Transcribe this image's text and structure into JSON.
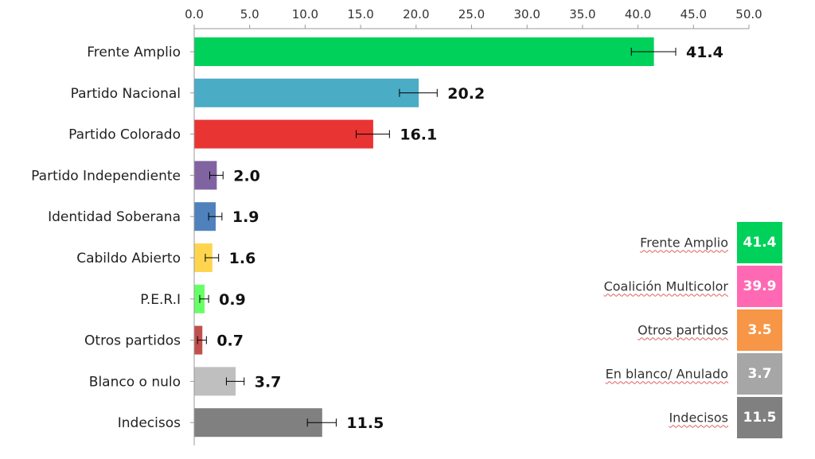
{
  "chart_data": {
    "type": "bar",
    "orientation": "horizontal",
    "xlim": [
      0,
      50
    ],
    "x_ticks": [
      "0.0",
      "5.0",
      "10.0",
      "15.0",
      "20.0",
      "25.0",
      "30.0",
      "35.0",
      "40.0",
      "45.0",
      "50.0"
    ],
    "categories": [
      "Frente Amplio",
      "Partido Nacional",
      "Partido Colorado",
      "Partido Independiente",
      "Identidad Soberana",
      "Cabildo Abierto",
      "P.E.R.I",
      "Otros partidos",
      "Blanco o nulo",
      "Indecisos"
    ],
    "values": [
      41.4,
      20.2,
      16.1,
      2.0,
      1.9,
      1.6,
      0.9,
      0.7,
      3.7,
      11.5
    ],
    "value_labels": [
      "41.4",
      "20.2",
      "16.1",
      "2.0",
      "1.9",
      "1.6",
      "0.9",
      "0.7",
      "3.7",
      "11.5"
    ],
    "error_margin": [
      2.0,
      1.7,
      1.5,
      0.6,
      0.6,
      0.6,
      0.4,
      0.4,
      0.8,
      1.3
    ],
    "colors": [
      "#00d15a",
      "#4bacc6",
      "#e93434",
      "#8064a2",
      "#4f81bd",
      "#ffd54f",
      "#66ff66",
      "#c0504d",
      "#bfbfbf",
      "#808080"
    ],
    "grid": false
  },
  "summary": [
    {
      "label": "Frente Amplio",
      "value": "41.4",
      "color": "#00d15a"
    },
    {
      "label": "Coalición Multicolor",
      "value": "39.9",
      "color": "#ff69b4"
    },
    {
      "label": "Otros partidos",
      "value": "3.5",
      "color": "#f79646"
    },
    {
      "label": "En blanco/ Anulado",
      "value": "3.7",
      "color": "#a6a6a6"
    },
    {
      "label": "Indecisos",
      "value": "11.5",
      "color": "#808080"
    }
  ]
}
